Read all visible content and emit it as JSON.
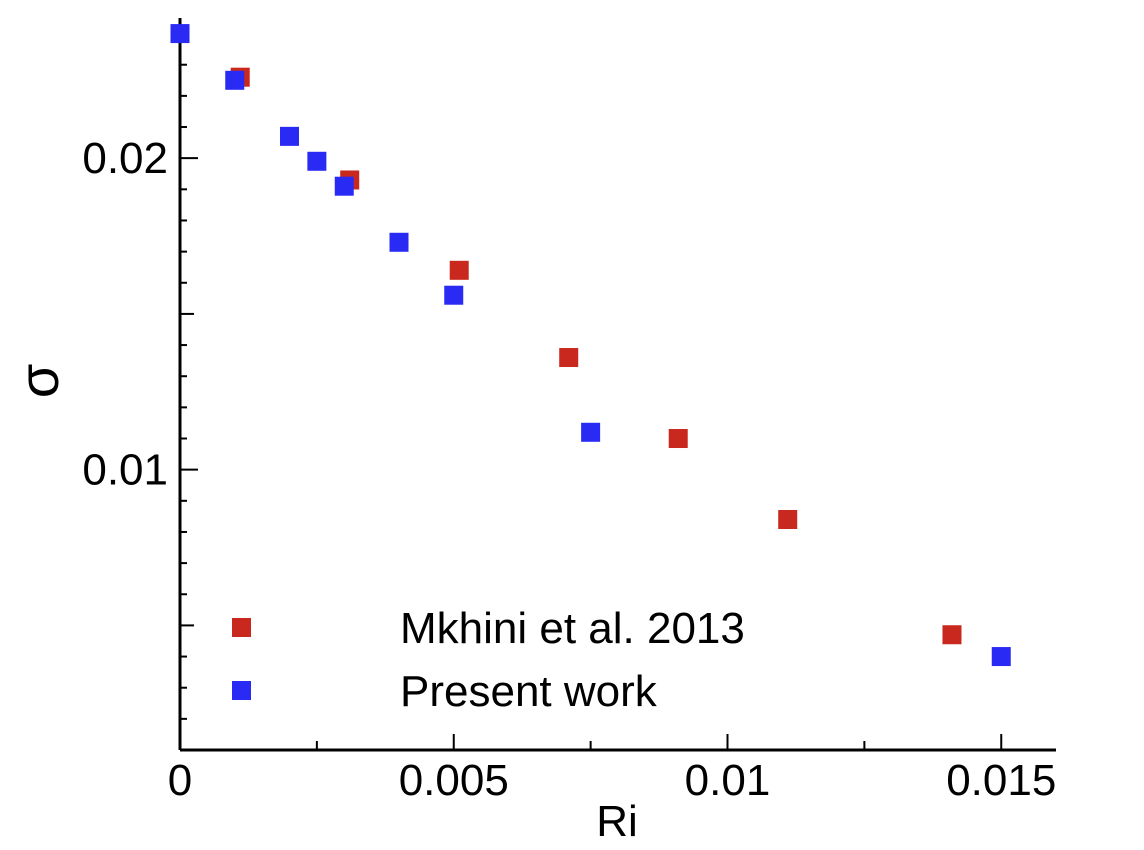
{
  "chart_data": {
    "type": "scatter",
    "title": "",
    "xlabel": "Ri",
    "ylabel": "σ",
    "xlim": [
      0,
      0.016
    ],
    "ylim": [
      0.001,
      0.0245
    ],
    "grid": false,
    "legend_position": "bottom-left",
    "x_ticks": [
      {
        "value": 0,
        "label": "0"
      },
      {
        "value": 0.005,
        "label": "0.005"
      },
      {
        "value": 0.01,
        "label": "0.01"
      },
      {
        "value": 0.015,
        "label": "0.015"
      }
    ],
    "y_ticks": [
      {
        "value": 0.01,
        "label": "0.01"
      },
      {
        "value": 0.02,
        "label": "0.02"
      }
    ],
    "series": [
      {
        "name": "Mkhini et al. 2013",
        "color": "#c8281e",
        "marker": "square",
        "x": [
          0.0011,
          0.0031,
          0.0051,
          0.0071,
          0.0091,
          0.0111,
          0.0141
        ],
        "y": [
          0.0226,
          0.0193,
          0.0164,
          0.0136,
          0.011,
          0.0084,
          0.0047
        ]
      },
      {
        "name": "Present work",
        "color": "#2a2af5",
        "marker": "square",
        "x": [
          0,
          0.001,
          0.002,
          0.0025,
          0.003,
          0.004,
          0.005,
          0.0075,
          0.015
        ],
        "y": [
          0.024,
          0.0225,
          0.0207,
          0.0199,
          0.0191,
          0.0173,
          0.0156,
          0.0112,
          0.004
        ]
      }
    ]
  }
}
